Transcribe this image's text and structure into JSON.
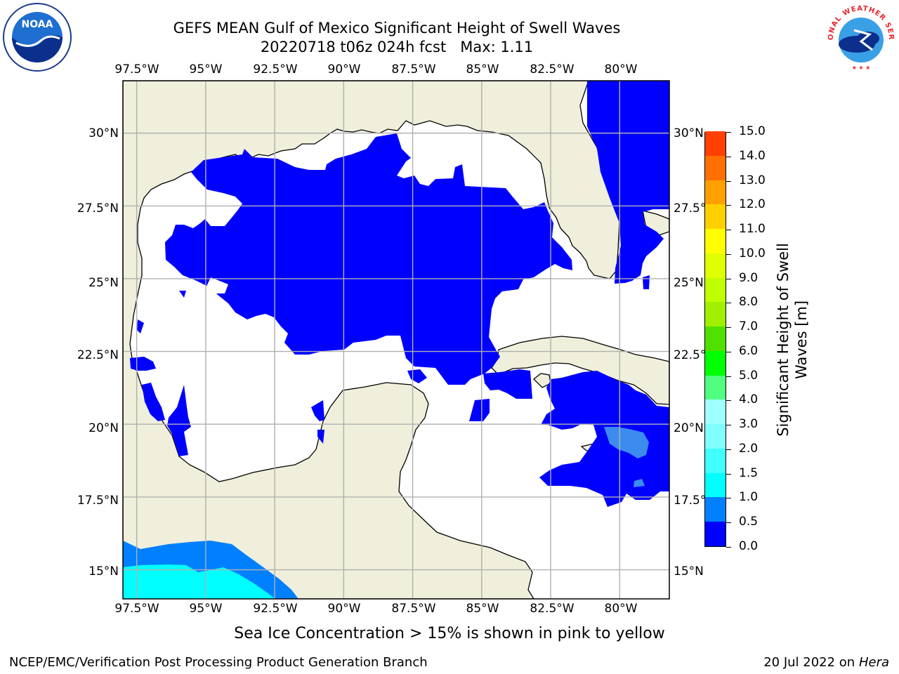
{
  "title": {
    "line1": "GEFS MEAN Gulf of Mexico Significant Height of Swell Waves",
    "line2": "20220718 t06z 024h fcst   Max: 1.11"
  },
  "map": {
    "lon_labels": [
      "97.5°W",
      "95°W",
      "92.5°W",
      "90°W",
      "87.5°W",
      "85°W",
      "82.5°W",
      "80°W"
    ],
    "lat_labels": [
      "30°N",
      "27.5°N",
      "25°N",
      "22.5°N",
      "20°N",
      "17.5°N",
      "15°N"
    ],
    "lat_labels_right": [
      "30°N",
      "27.5°N",
      "25°N",
      "22.5°N",
      "20°N",
      "17.5°N",
      "15°N"
    ],
    "extent": {
      "lon_min": -98,
      "lon_max": -78.2,
      "lat_min": 14,
      "lat_max": 31.8
    },
    "land_color": "#efefdb",
    "ocean_color": "#ffffff",
    "grid_color": "#b0b0b0"
  },
  "colorbar": {
    "label": "Significant Height of Swell Waves [m]",
    "label_line1": "Significant Height of Swell",
    "label_line2": "Waves [m]",
    "ticks": [
      "0.0",
      "0.5",
      "1.0",
      "1.5",
      "2.0",
      "3.0",
      "4.0",
      "5.0",
      "6.0",
      "7.0",
      "8.0",
      "9.0",
      "10.0",
      "11.0",
      "12.0",
      "13.0",
      "14.0",
      "15.0"
    ],
    "colors": [
      "#0000ff",
      "#0080ff",
      "#00ffff",
      "#40ffff",
      "#80ffff",
      "#a0ffff",
      "#50ff80",
      "#00ff00",
      "#50e000",
      "#a0f000",
      "#c0ff00",
      "#e0ff00",
      "#ffff00",
      "#ffd000",
      "#ffa000",
      "#ff7000",
      "#ff4000",
      "#ff0000"
    ],
    "max_value": 1.11
  },
  "note": "Sea Ice Concentration > 15% is shown in pink to yellow",
  "footer": {
    "left": "NCEP/EMC/Verification Post Processing Product Generation Branch",
    "right_date": "20 Jul 2022 on ",
    "right_host": "Hera"
  },
  "logos": {
    "noaa_text": "NOAA",
    "nws_text": "NATIONAL WEATHER SERVICE"
  }
}
